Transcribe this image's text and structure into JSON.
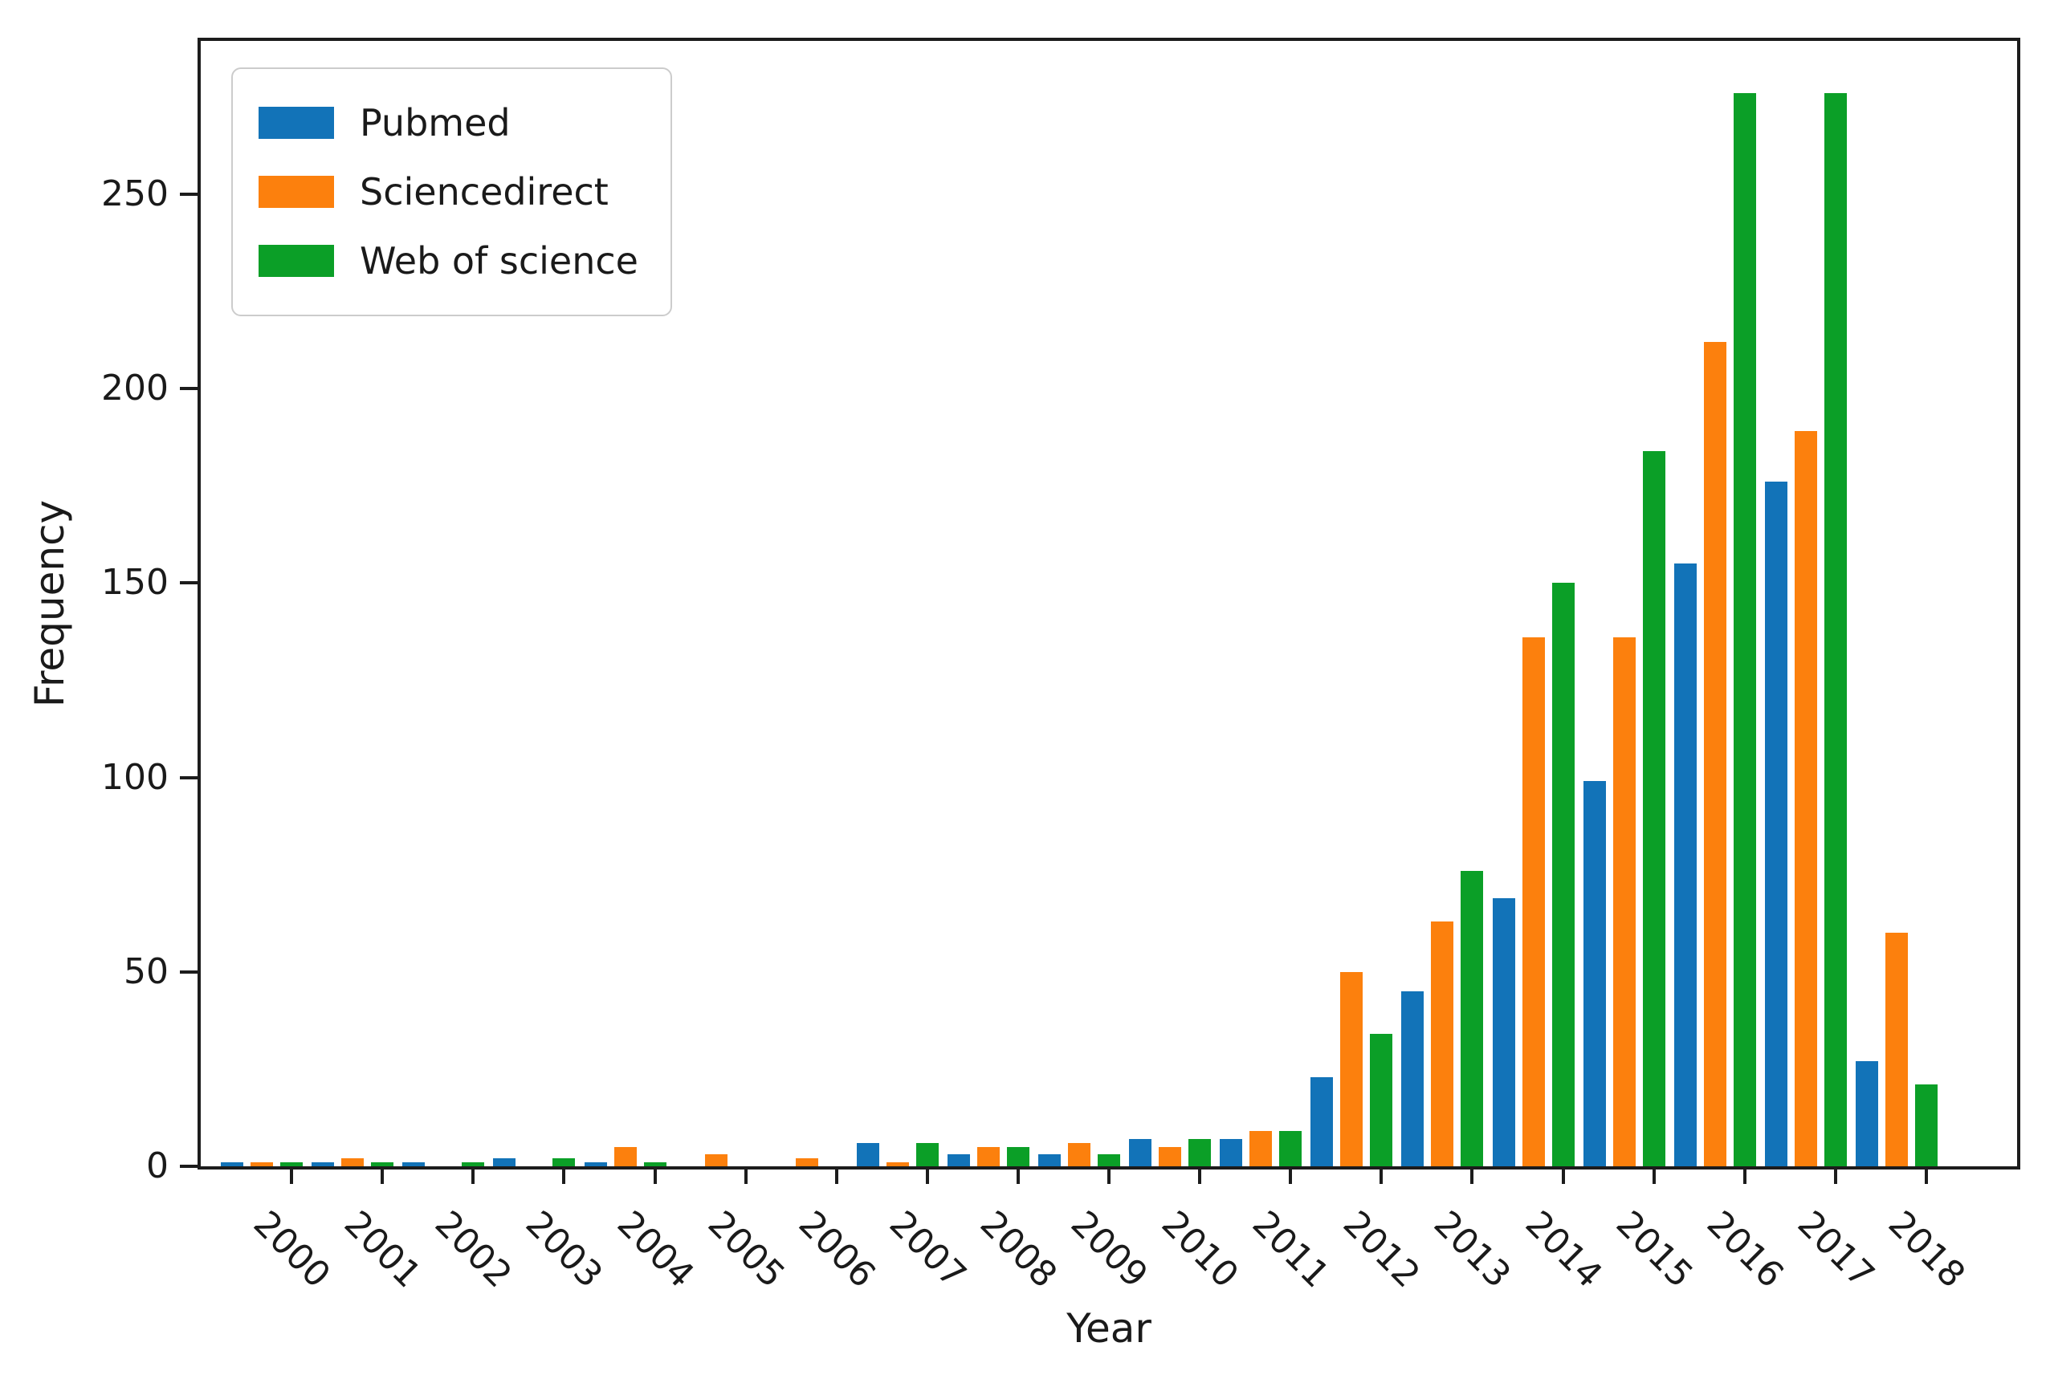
{
  "figure": {
    "background": "#ffffff",
    "text_color": "#1a1a1a",
    "spine_color": "#1c1c1c"
  },
  "chart_data": {
    "type": "bar",
    "title": "",
    "xlabel": "Year",
    "ylabel": "Frequency",
    "categories": [
      "2000",
      "2001",
      "2002",
      "2003",
      "2004",
      "2005",
      "2006",
      "2007",
      "2008",
      "2009",
      "2010",
      "2011",
      "2012",
      "2013",
      "2014",
      "2015",
      "2016",
      "2017",
      "2018"
    ],
    "series": [
      {
        "name": "Pubmed",
        "color": "#1273b8",
        "values": [
          1,
          1,
          1,
          2,
          1,
          0,
          0,
          6,
          3,
          3,
          7,
          7,
          23,
          45,
          69,
          99,
          155,
          176,
          27
        ]
      },
      {
        "name": "Sciencedirect",
        "color": "#fc800d",
        "values": [
          1,
          2,
          0,
          0,
          5,
          3,
          2,
          1,
          5,
          6,
          5,
          9,
          50,
          63,
          136,
          136,
          212,
          189,
          60
        ]
      },
      {
        "name": "Web of science",
        "color": "#0b9f27",
        "values": [
          1,
          1,
          1,
          2,
          1,
          0,
          0,
          6,
          5,
          3,
          7,
          9,
          34,
          76,
          150,
          184,
          276,
          276,
          21
        ]
      }
    ],
    "ylim": [
      0,
      289.4
    ],
    "yticks": [
      0,
      50,
      100,
      150,
      200,
      250
    ],
    "grid": false,
    "legend_position": "upper left"
  }
}
